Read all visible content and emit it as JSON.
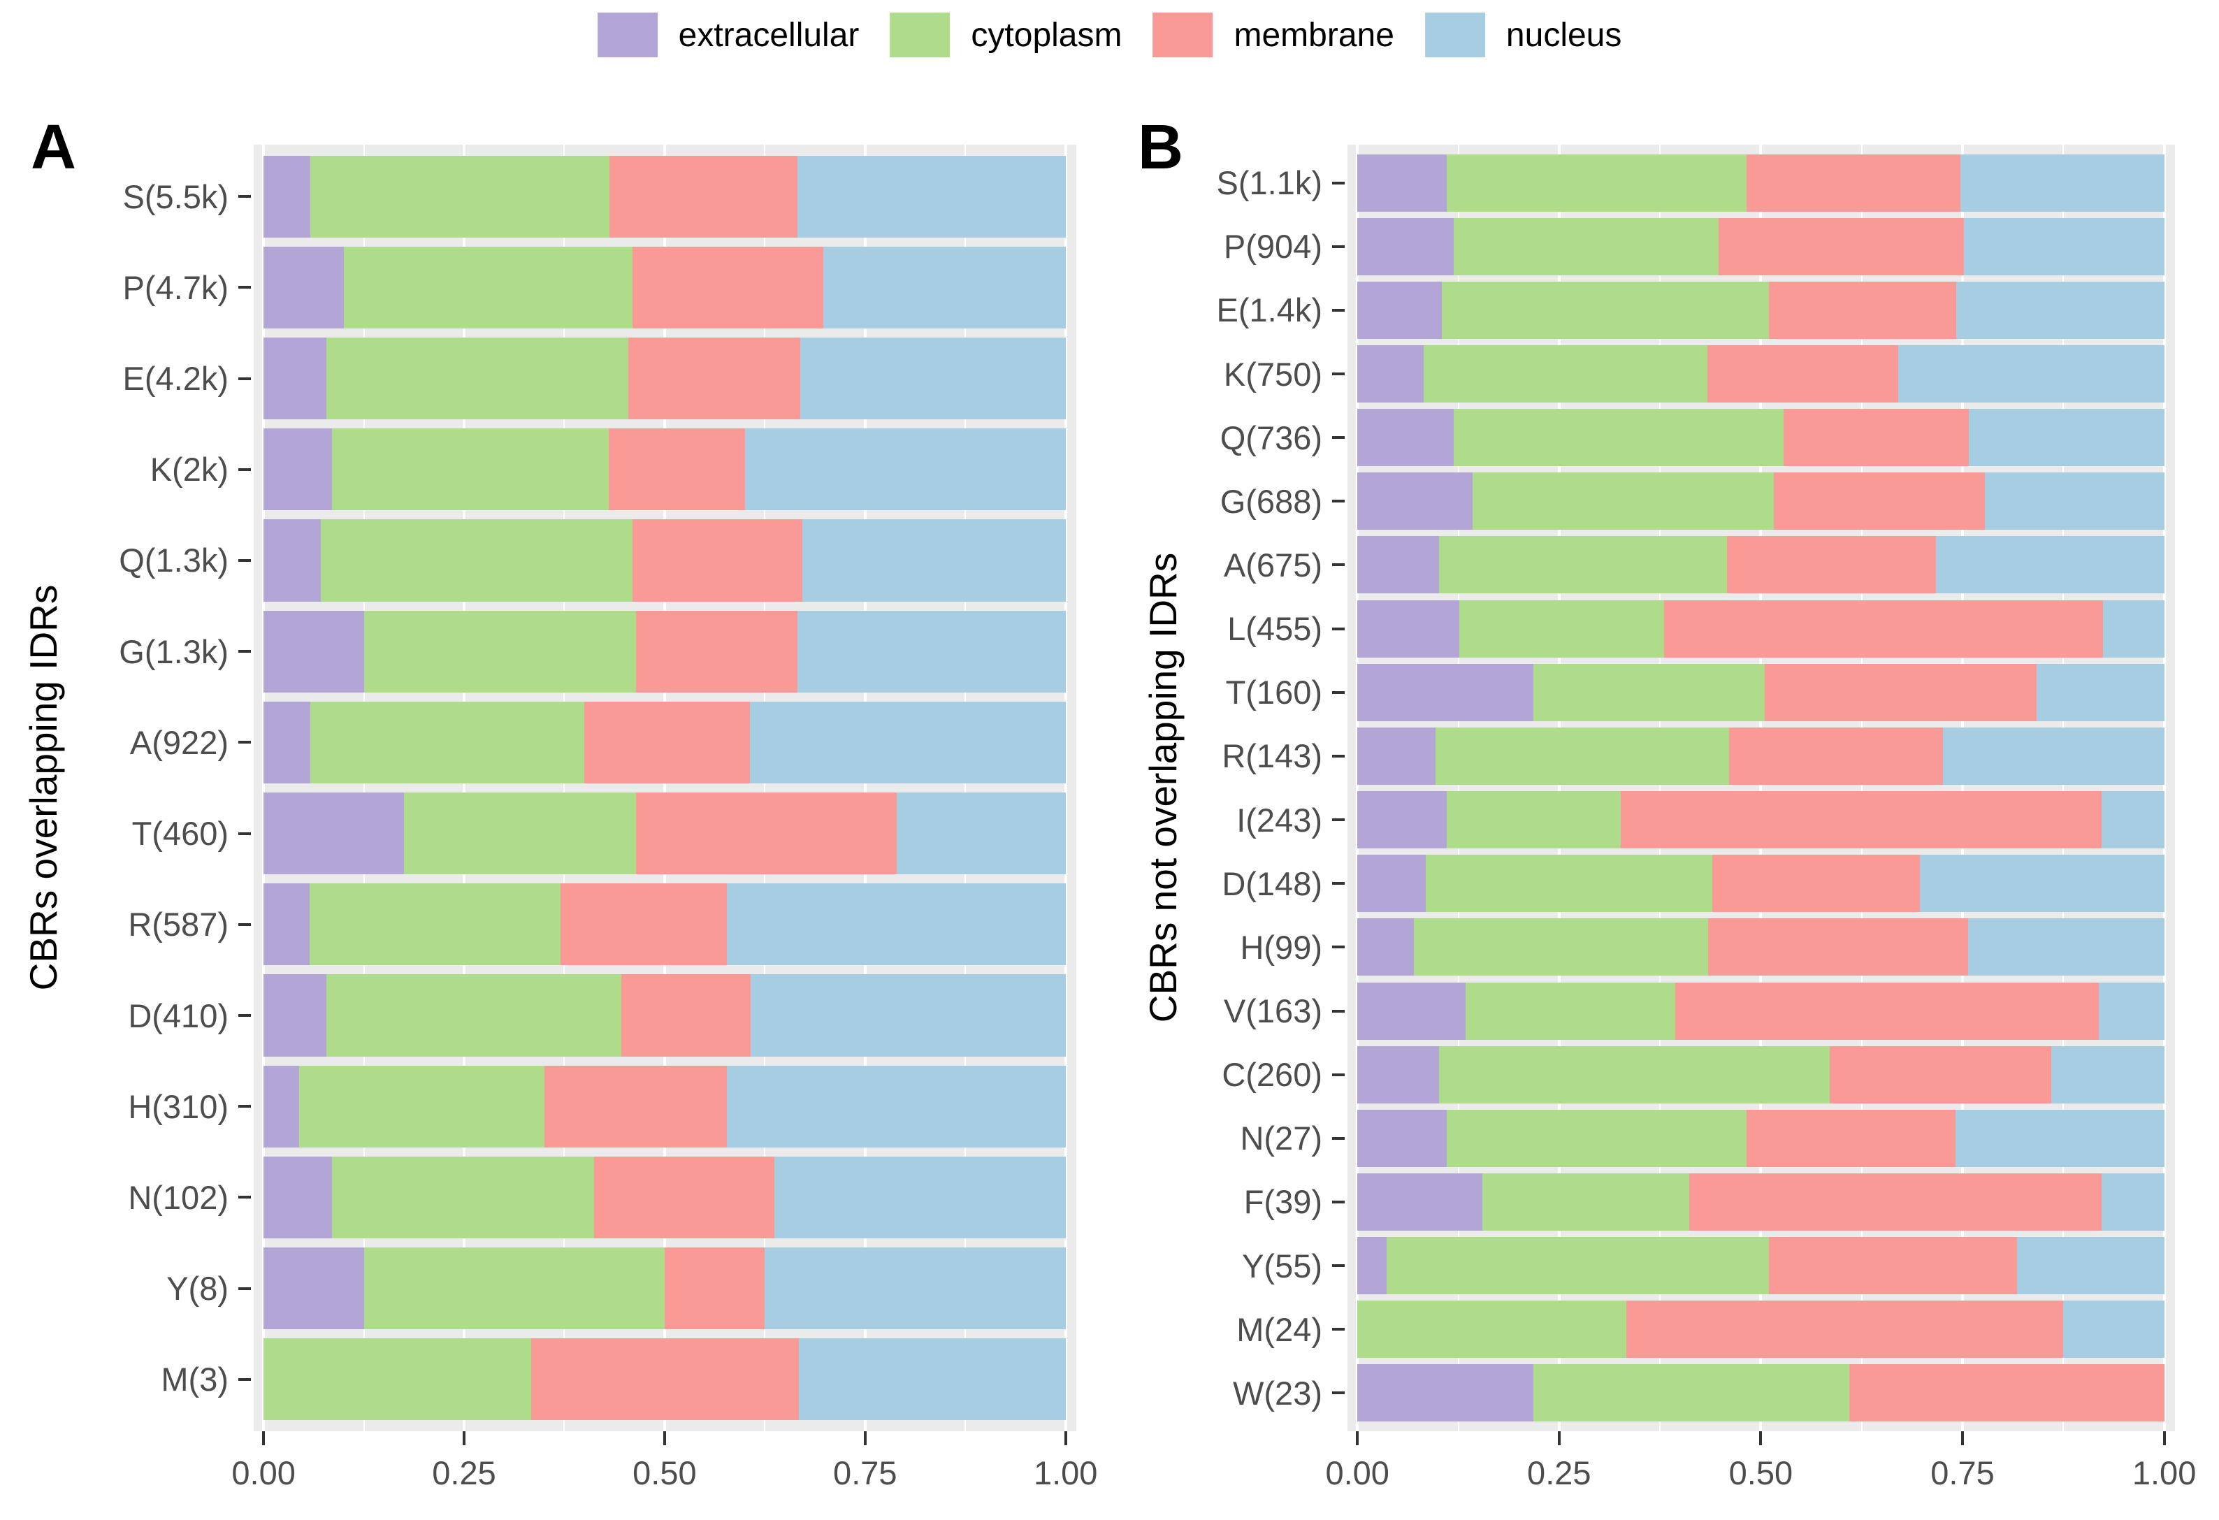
{
  "legend": {
    "items": [
      {
        "label": "extracellular",
        "color": "#b3a6d7"
      },
      {
        "label": "cytoplasm",
        "color": "#afdc8b"
      },
      {
        "label": "membrane",
        "color": "#fa9a96"
      },
      {
        "label": "nucleus",
        "color": "#a6cde2"
      }
    ]
  },
  "panels": {
    "a_letter": "A",
    "b_letter": "B",
    "a_ylabel": "CBRs overlapping IDRs",
    "b_ylabel": "CBRs not overlapping IDRs"
  },
  "chart_data": [
    {
      "panel": "A",
      "type": "bar",
      "orientation": "horizontal",
      "stacked": true,
      "title": "",
      "xlabel": "",
      "ylabel": "CBRs overlapping IDRs",
      "xlim": [
        0,
        1
      ],
      "x_ticks": [
        "0.00",
        "0.25",
        "0.50",
        "0.75",
        "1.00"
      ],
      "grid": "white major/minor on gray panel",
      "legend_position": "top",
      "categories": [
        "S(5.5k)",
        "P(4.7k)",
        "E(4.2k)",
        "K(2k)",
        "Q(1.3k)",
        "G(1.3k)",
        "A(922)",
        "T(460)",
        "R(587)",
        "D(410)",
        "H(310)",
        "N(102)",
        "Y(8)",
        "M(3)"
      ],
      "series": [
        {
          "name": "extracellular",
          "values": [
            0.058,
            0.1,
            0.078,
            0.085,
            0.071,
            0.125,
            0.058,
            0.175,
            0.057,
            0.078,
            0.044,
            0.085,
            0.125,
            0.0
          ]
        },
        {
          "name": "cytoplasm",
          "values": [
            0.373,
            0.36,
            0.377,
            0.345,
            0.389,
            0.339,
            0.342,
            0.289,
            0.313,
            0.368,
            0.306,
            0.327,
            0.375,
            0.334
          ]
        },
        {
          "name": "membrane",
          "values": [
            0.235,
            0.238,
            0.214,
            0.17,
            0.212,
            0.202,
            0.206,
            0.325,
            0.208,
            0.161,
            0.228,
            0.225,
            0.125,
            0.333
          ]
        },
        {
          "name": "nucleus",
          "values": [
            0.334,
            0.302,
            0.331,
            0.4,
            0.328,
            0.334,
            0.394,
            0.211,
            0.422,
            0.393,
            0.422,
            0.363,
            0.375,
            0.333
          ]
        }
      ]
    },
    {
      "panel": "B",
      "type": "bar",
      "orientation": "horizontal",
      "stacked": true,
      "title": "",
      "xlabel": "",
      "ylabel": "CBRs not overlapping IDRs",
      "xlim": [
        0,
        1
      ],
      "x_ticks": [
        "0.00",
        "0.25",
        "0.50",
        "0.75",
        "1.00"
      ],
      "grid": "white major/minor on gray panel",
      "legend_position": "top",
      "categories": [
        "S(1.1k)",
        "P(904)",
        "E(1.4k)",
        "K(750)",
        "Q(736)",
        "G(688)",
        "A(675)",
        "L(455)",
        "T(160)",
        "R(143)",
        "I(243)",
        "D(148)",
        "H(99)",
        "V(163)",
        "C(260)",
        "N(27)",
        "F(39)",
        "Y(55)",
        "M(24)",
        "W(23)"
      ],
      "series": [
        {
          "name": "extracellular",
          "values": [
            0.111,
            0.119,
            0.105,
            0.082,
            0.119,
            0.143,
            0.101,
            0.126,
            0.218,
            0.097,
            0.111,
            0.085,
            0.07,
            0.134,
            0.101,
            0.111,
            0.155,
            0.036,
            0.0,
            0.218
          ]
        },
        {
          "name": "cytoplasm",
          "values": [
            0.371,
            0.329,
            0.405,
            0.352,
            0.409,
            0.373,
            0.357,
            0.254,
            0.287,
            0.364,
            0.215,
            0.355,
            0.365,
            0.26,
            0.484,
            0.371,
            0.256,
            0.474,
            0.333,
            0.392
          ]
        },
        {
          "name": "membrane",
          "values": [
            0.265,
            0.304,
            0.232,
            0.236,
            0.23,
            0.262,
            0.259,
            0.544,
            0.337,
            0.265,
            0.596,
            0.257,
            0.322,
            0.525,
            0.275,
            0.259,
            0.511,
            0.308,
            0.542,
            0.39
          ]
        },
        {
          "name": "nucleus",
          "values": [
            0.253,
            0.248,
            0.258,
            0.33,
            0.242,
            0.222,
            0.283,
            0.076,
            0.158,
            0.274,
            0.078,
            0.303,
            0.243,
            0.081,
            0.14,
            0.259,
            0.078,
            0.182,
            0.125,
            0.0
          ]
        }
      ]
    }
  ]
}
